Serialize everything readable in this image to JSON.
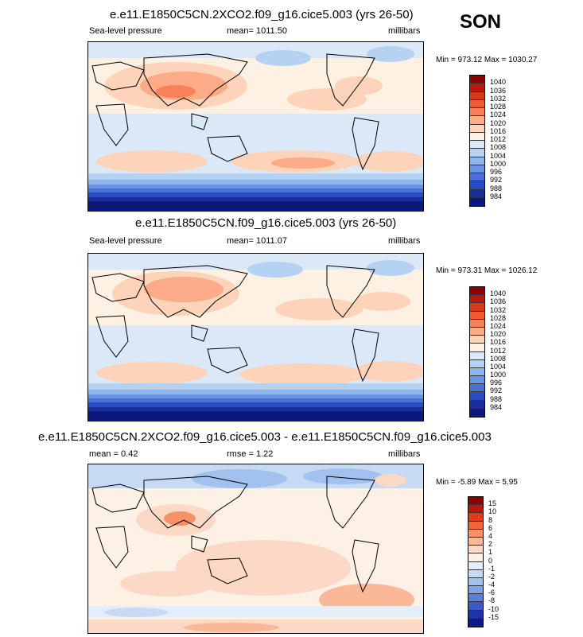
{
  "season": "SON",
  "panels": [
    {
      "title": "e.e11.E1850C5CN.2XCO2.f09_g16.cice5.003 (yrs 26-50)",
      "left": "Sea-level pressure",
      "center": "mean= 1011.50",
      "right": "millibars",
      "minmax": "Min = 973.12 Max = 1030.27",
      "levels": [
        "1040",
        "1036",
        "1032",
        "1028",
        "1024",
        "1020",
        "1016",
        "1012",
        "1008",
        "1004",
        "1000",
        "996",
        "992",
        "988",
        "984"
      ],
      "colors": [
        "#8b0000",
        "#b51a0c",
        "#d9381a",
        "#ee5a32",
        "#f78258",
        "#fbab85",
        "#fdd3b9",
        "#fdf1e3",
        "#dbe8f7",
        "#b5d2f3",
        "#8cb6ec",
        "#6a95e4",
        "#4872d6",
        "#2a4cc2",
        "#1a2f9e",
        "#0b1a7a"
      ]
    },
    {
      "title": "e.e11.E1850C5CN.f09_g16.cice5.003 (yrs 26-50)",
      "left": "Sea-level pressure",
      "center": "mean= 1011.07",
      "right": "millibars",
      "minmax": "Min = 973.31 Max = 1026.12",
      "levels": [
        "1040",
        "1036",
        "1032",
        "1028",
        "1024",
        "1020",
        "1016",
        "1012",
        "1008",
        "1004",
        "1000",
        "996",
        "992",
        "988",
        "984"
      ],
      "colors": [
        "#8b0000",
        "#b51a0c",
        "#d9381a",
        "#ee5a32",
        "#f78258",
        "#fbab85",
        "#fdd3b9",
        "#fdf1e3",
        "#dbe8f7",
        "#b5d2f3",
        "#8cb6ec",
        "#6a95e4",
        "#4872d6",
        "#2a4cc2",
        "#1a2f9e",
        "#0b1a7a"
      ]
    },
    {
      "title": "e.e11.E1850C5CN.2XCO2.f09_g16.cice5.003 - e.e11.E1850C5CN.f09_g16.cice5.003",
      "left": "mean =   0.42",
      "center": "rmse =   1.22",
      "right": "millibars",
      "minmax": "Min =  -5.89 Max =   5.95",
      "levels": [
        "15",
        "10",
        "8",
        "6",
        "4",
        "2",
        "1",
        "0",
        "-1",
        "-2",
        "-4",
        "-6",
        "-8",
        "-10",
        "-15"
      ],
      "colors": [
        "#8b0000",
        "#c0150b",
        "#e23a1c",
        "#f2643c",
        "#f89068",
        "#fbb898",
        "#fcd9c6",
        "#fdf0e4",
        "#e4eefa",
        "#c6daf4",
        "#a3c1ee",
        "#7ea2e6",
        "#5a7edb",
        "#3a58c9",
        "#1f36aa",
        "#0c1c86"
      ]
    }
  ]
}
